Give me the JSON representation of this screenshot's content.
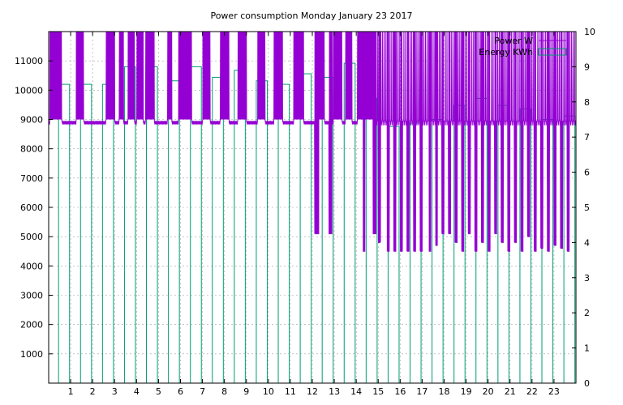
{
  "chart_data": {
    "type": "bar",
    "title": "Power consumption Monday January 23 2017",
    "legend": {
      "placement": "top-right",
      "entries": [
        "Power W",
        "Energy KWh"
      ]
    },
    "colors": {
      "power": "#9400d3",
      "energy": "#009e73",
      "grid": "#a0a0a0",
      "axis": "#000000"
    },
    "grid": true,
    "x": {
      "range": [
        0,
        24
      ],
      "tick_labels": [
        "1",
        "2",
        "3",
        "4",
        "5",
        "6",
        "7",
        "8",
        "9",
        "10",
        "11",
        "12",
        "13",
        "14",
        "15",
        "16",
        "17",
        "18",
        "19",
        "20",
        "21",
        "22",
        "23"
      ]
    },
    "y_left": {
      "range": [
        0,
        12000
      ],
      "tick_labels": [
        "1000",
        "2000",
        "3000",
        "4000",
        "5000",
        "6000",
        "7000",
        "8000",
        "9000",
        "10000",
        "11000"
      ]
    },
    "y_right": {
      "range": [
        0,
        10
      ],
      "tick_labels": [
        "0",
        "1",
        "2",
        "3",
        "4",
        "5",
        "6",
        "7",
        "8",
        "9",
        "10"
      ]
    },
    "series": [
      {
        "name": "Energy KWh",
        "axis": "right",
        "style": "boxes",
        "x": [
          0,
          1,
          2,
          3,
          4,
          5,
          6,
          7,
          8,
          9,
          10,
          11,
          12,
          13,
          14,
          15,
          16,
          17,
          18,
          19,
          20,
          21,
          22,
          23
        ],
        "values": [
          8.5,
          8.5,
          8.5,
          9.0,
          9.0,
          8.6,
          9.0,
          8.7,
          8.9,
          8.6,
          8.5,
          8.8,
          8.7,
          9.1,
          8.1,
          7.3,
          7.4,
          7.5,
          7.9,
          8.1,
          7.9,
          7.8,
          7.5,
          7.6
        ]
      },
      {
        "name": "Power W",
        "axis": "left",
        "style": "line",
        "baseline": 8950,
        "bursts": [
          [
            0.05,
            0.6
          ],
          [
            1.25,
            1.6
          ],
          [
            2.6,
            3.0
          ],
          [
            3.2,
            3.4
          ],
          [
            3.6,
            3.9
          ],
          [
            4.0,
            4.3
          ],
          [
            4.4,
            4.8
          ],
          [
            5.4,
            5.6
          ],
          [
            5.9,
            6.5
          ],
          [
            7.0,
            7.35
          ],
          [
            7.8,
            8.2
          ],
          [
            8.6,
            9.0
          ],
          [
            9.5,
            9.85
          ],
          [
            10.25,
            10.65
          ],
          [
            11.15,
            11.6
          ],
          [
            12.2,
            12.55
          ],
          [
            12.95,
            13.35
          ],
          [
            13.5,
            13.8
          ],
          [
            14.05,
            14.9
          ]
        ],
        "dips": [
          [
            12.1,
            12.3,
            5100
          ],
          [
            12.75,
            12.9,
            5100
          ],
          [
            14.3,
            14.4,
            4500
          ],
          [
            14.75,
            14.9,
            5100
          ],
          [
            15.0,
            15.1,
            4800
          ],
          [
            15.4,
            15.5,
            4500
          ],
          [
            15.7,
            15.8,
            4500
          ],
          [
            16.0,
            16.1,
            4500
          ],
          [
            16.3,
            16.4,
            4500
          ],
          [
            16.6,
            16.7,
            4500
          ],
          [
            16.9,
            17.0,
            4500
          ],
          [
            17.3,
            17.4,
            4500
          ],
          [
            17.6,
            17.7,
            4700
          ],
          [
            17.9,
            18.0,
            5100
          ],
          [
            18.2,
            18.3,
            5100
          ],
          [
            18.5,
            18.6,
            4800
          ],
          [
            18.8,
            18.9,
            4500
          ],
          [
            19.1,
            19.2,
            5100
          ],
          [
            19.4,
            19.5,
            4500
          ],
          [
            19.7,
            19.8,
            4800
          ],
          [
            20.0,
            20.1,
            4500
          ],
          [
            20.3,
            20.4,
            5100
          ],
          [
            20.6,
            20.7,
            4800
          ],
          [
            20.9,
            21.0,
            4500
          ],
          [
            21.2,
            21.3,
            4800
          ],
          [
            21.5,
            21.6,
            4500
          ],
          [
            21.8,
            21.9,
            5000
          ],
          [
            22.1,
            22.2,
            4500
          ],
          [
            22.4,
            22.5,
            4600
          ],
          [
            22.7,
            22.8,
            4500
          ],
          [
            23.0,
            23.1,
            4700
          ],
          [
            23.3,
            23.4,
            4600
          ],
          [
            23.6,
            23.7,
            4500
          ]
        ],
        "peak": 12000
      }
    ]
  }
}
